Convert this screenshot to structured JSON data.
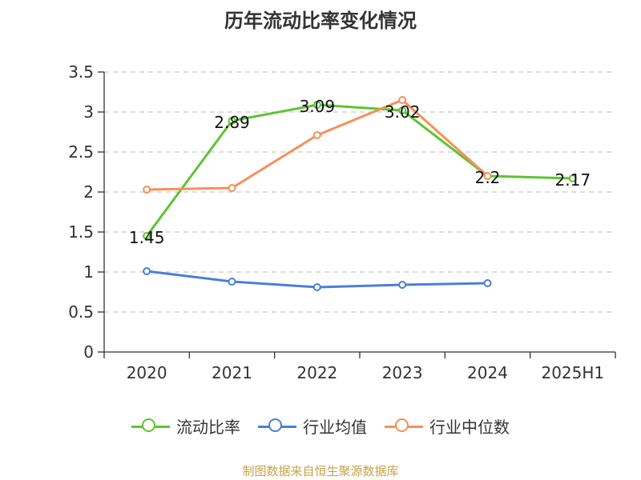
{
  "title": "历年流动比率变化情况",
  "source": "制图数据来自恒生聚源数据库",
  "chart_data": {
    "type": "line",
    "categories": [
      "2020",
      "2021",
      "2022",
      "2023",
      "2024",
      "2025H1"
    ],
    "y_ticks": [
      "0",
      "0.5",
      "1",
      "1.5",
      "2",
      "2.5",
      "3",
      "3.5"
    ],
    "ylim": [
      0,
      3.5
    ],
    "grid": true,
    "legend_position": "bottom",
    "series": [
      {
        "name": "流动比率",
        "color": "#5cc532",
        "values": [
          1.45,
          2.89,
          3.09,
          3.02,
          2.2,
          2.17
        ],
        "data_labels": [
          "1.45",
          "2.89",
          "3.09",
          "3.02",
          "2.2",
          "2.17"
        ]
      },
      {
        "name": "行业均值",
        "color": "#4a7fd8",
        "values": [
          1.01,
          0.88,
          0.81,
          0.84,
          0.86,
          null
        ]
      },
      {
        "name": "行业中位数",
        "color": "#f5905a",
        "values": [
          2.03,
          2.05,
          2.71,
          3.15,
          2.2,
          null
        ]
      }
    ]
  }
}
